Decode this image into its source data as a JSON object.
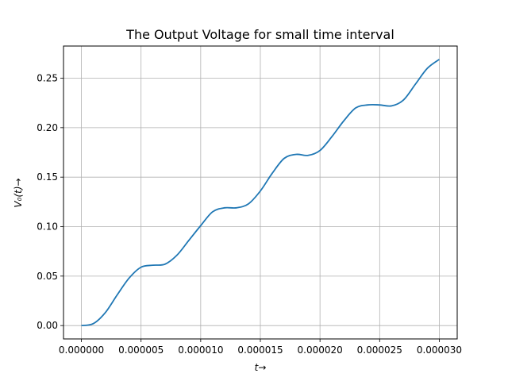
{
  "chart_data": {
    "type": "line",
    "title": "The Output Voltage for small time interval",
    "xlabel": "t→",
    "ylabel": "V₀(t)→",
    "xlim": [
      -1.5e-06,
      3.15e-05
    ],
    "ylim": [
      -0.0135,
      0.2825
    ],
    "grid": true,
    "xticks": [
      0,
      5e-06,
      1e-05,
      1.5e-05,
      2e-05,
      2.5e-05,
      3e-05
    ],
    "xtick_labels": [
      "0.000000",
      "0.000005",
      "0.000010",
      "0.000015",
      "0.000020",
      "0.000025",
      "0.000030"
    ],
    "yticks": [
      0,
      0.05,
      0.1,
      0.15,
      0.2,
      0.25
    ],
    "ytick_labels": [
      "0.00",
      "0.05",
      "0.10",
      "0.15",
      "0.20",
      "0.25"
    ],
    "colors": {
      "series": "#1f77b4"
    },
    "series": [
      {
        "x": [
          0,
          1e-06,
          2e-06,
          3e-06,
          4e-06,
          5e-06,
          6e-06,
          7e-06,
          8e-06,
          9e-06,
          1e-05,
          1.1e-05,
          1.2e-05,
          1.3e-05,
          1.4e-05,
          1.5e-05,
          1.6e-05,
          1.7e-05,
          1.8e-05,
          1.9e-05,
          2e-05,
          2.1e-05,
          2.2e-05,
          2.3e-05,
          2.4e-05,
          2.5e-05,
          2.6e-05,
          2.7e-05,
          2.8e-05,
          2.9e-05,
          3e-05
        ],
        "values": [
          0.0,
          0.002,
          0.013,
          0.031,
          0.048,
          0.059,
          0.061,
          0.062,
          0.071,
          0.086,
          0.101,
          0.115,
          0.119,
          0.119,
          0.123,
          0.136,
          0.154,
          0.169,
          0.173,
          0.172,
          0.177,
          0.191,
          0.207,
          0.22,
          0.223,
          0.223,
          0.222,
          0.228,
          0.244,
          0.26,
          0.269
        ]
      }
    ]
  }
}
